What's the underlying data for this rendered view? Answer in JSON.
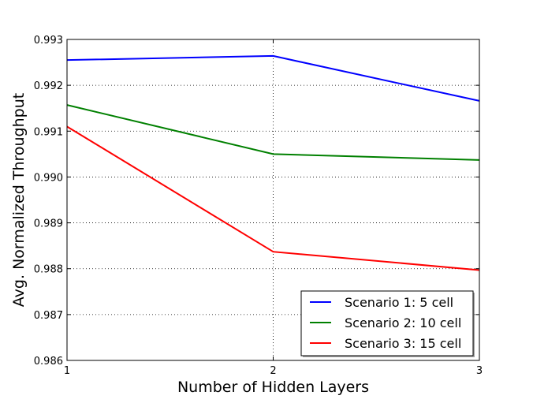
{
  "chart_data": {
    "type": "line",
    "title": "",
    "xlabel": "Number of Hidden Layers",
    "ylabel": "Avg. Normalized Throughput",
    "xlim": [
      1,
      3
    ],
    "ylim": [
      0.986,
      0.993
    ],
    "x_ticks": [
      "1",
      "2",
      "3"
    ],
    "y_ticks": [
      "0.986",
      "0.987",
      "0.988",
      "0.989",
      "0.990",
      "0.991",
      "0.992",
      "0.993"
    ],
    "grid": true,
    "legend_position": "lower-right",
    "x": [
      1,
      2,
      3
    ],
    "series": [
      {
        "name": "Scenario 1: 5 cell",
        "color": "#0000ff",
        "values": [
          0.99255,
          0.99264,
          0.99166
        ]
      },
      {
        "name": "Scenario 2: 10 cell",
        "color": "#008000",
        "values": [
          0.99157,
          0.9905,
          0.99037
        ]
      },
      {
        "name": "Scenario 3: 15 cell",
        "color": "#ff0000",
        "values": [
          0.9911,
          0.98837,
          0.98797
        ]
      }
    ]
  }
}
